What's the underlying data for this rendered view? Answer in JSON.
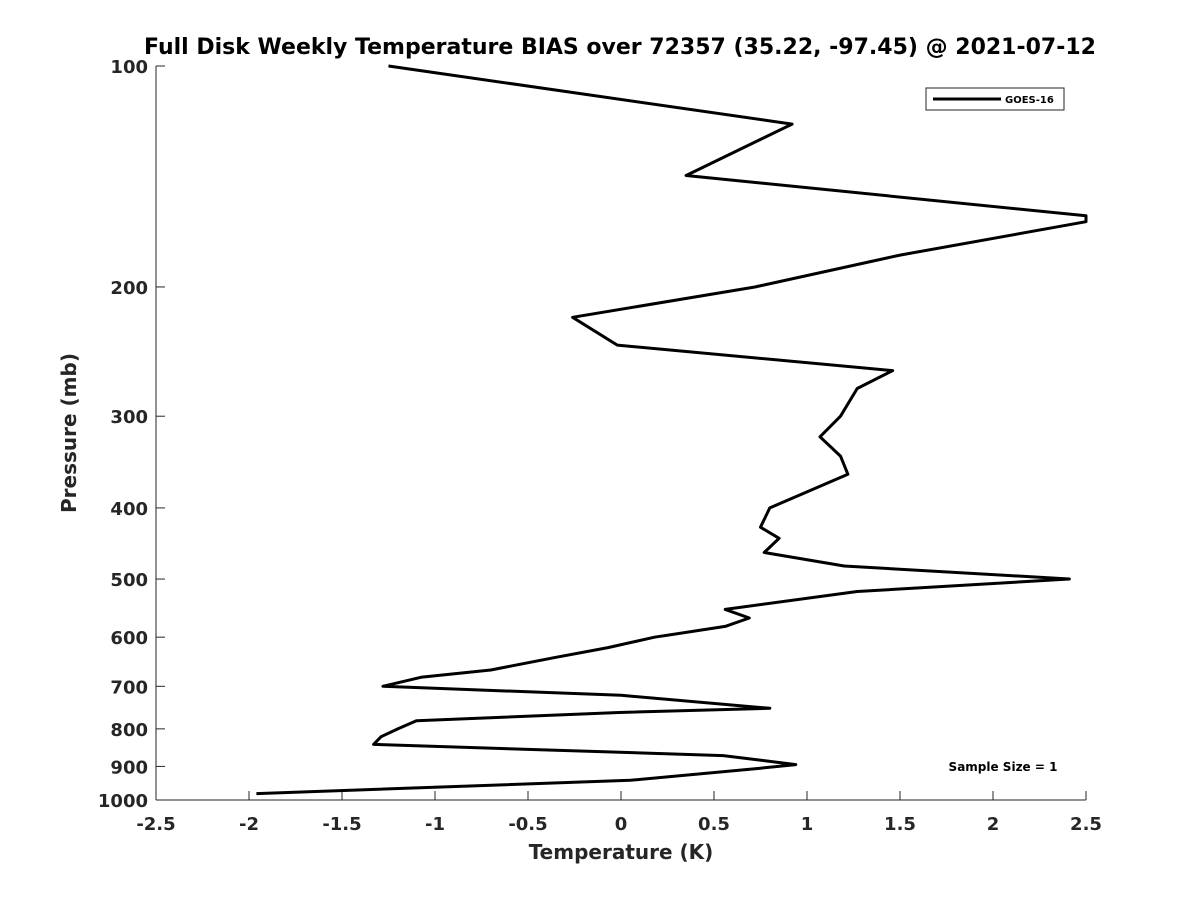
{
  "chart_data": {
    "type": "line",
    "title": "Full Disk Weekly Temperature BIAS over 72357 (35.22, -97.45) @ 2021-07-12",
    "xlabel": "Temperature (K)",
    "ylabel": "Pressure (mb)",
    "xlim": [
      -2.5,
      2.5
    ],
    "ylim": [
      100,
      1000
    ],
    "y_scale": "log",
    "y_reversed": true,
    "grid": false,
    "x_ticks": [
      -2.5,
      -2,
      -1.5,
      -1,
      -0.5,
      0,
      0.5,
      1,
      1.5,
      2,
      2.5
    ],
    "x_tick_labels": [
      "-2.5",
      "-2",
      "-1.5",
      "-1",
      "-0.5",
      "0",
      "0.5",
      "1",
      "1.5",
      "2",
      "2.5"
    ],
    "y_ticks": [
      100,
      200,
      300,
      400,
      500,
      600,
      700,
      800,
      900,
      1000
    ],
    "y_tick_labels": [
      "100",
      "200",
      "300",
      "400",
      "500",
      "600",
      "700",
      "800",
      "900",
      "1000"
    ],
    "legend": {
      "placement": "top-right",
      "entries": [
        "GOES-16"
      ]
    },
    "annotation": "Sample Size = 1",
    "series": [
      {
        "name": "GOES-16",
        "color": "#000000",
        "points": [
          [
            -1.25,
            100
          ],
          [
            0.92,
            120
          ],
          [
            0.35,
            141
          ],
          [
            2.5,
            160
          ],
          [
            2.5,
            163
          ],
          [
            1.5,
            181
          ],
          [
            0.72,
            200
          ],
          [
            -0.26,
            220
          ],
          [
            -0.02,
            240
          ],
          [
            1.46,
            260
          ],
          [
            1.27,
            275
          ],
          [
            1.18,
            300
          ],
          [
            1.07,
            320
          ],
          [
            1.18,
            340
          ],
          [
            1.22,
            360
          ],
          [
            0.8,
            400
          ],
          [
            0.75,
            425
          ],
          [
            0.85,
            440
          ],
          [
            0.77,
            460
          ],
          [
            1.2,
            480
          ],
          [
            2.41,
            500
          ],
          [
            1.27,
            520
          ],
          [
            0.56,
            550
          ],
          [
            0.69,
            565
          ],
          [
            0.56,
            580
          ],
          [
            0.18,
            600
          ],
          [
            -0.07,
            620
          ],
          [
            -0.36,
            640
          ],
          [
            -0.7,
            665
          ],
          [
            -1.07,
            680
          ],
          [
            -1.28,
            700
          ],
          [
            0.0,
            720
          ],
          [
            0.8,
            750
          ],
          [
            -0.01,
            760
          ],
          [
            -1.1,
            780
          ],
          [
            -1.2,
            800
          ],
          [
            -1.29,
            820
          ],
          [
            -1.33,
            840
          ],
          [
            0.55,
            870
          ],
          [
            0.94,
            895
          ],
          [
            0.75,
            905
          ],
          [
            0.05,
            940
          ],
          [
            -1.96,
            980
          ]
        ]
      }
    ]
  }
}
